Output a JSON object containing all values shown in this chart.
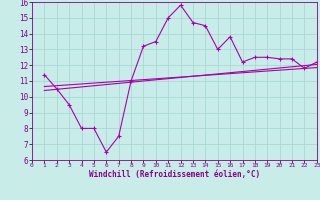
{
  "xlabel": "Windchill (Refroidissement éolien,°C)",
  "xlim": [
    0,
    23
  ],
  "ylim": [
    6,
    16
  ],
  "yticks": [
    6,
    7,
    8,
    9,
    10,
    11,
    12,
    13,
    14,
    15,
    16
  ],
  "xticks": [
    0,
    1,
    2,
    3,
    4,
    5,
    6,
    7,
    8,
    9,
    10,
    11,
    12,
    13,
    14,
    15,
    16,
    17,
    18,
    19,
    20,
    21,
    22,
    23
  ],
  "bg_color": "#c8ece8",
  "grid_color": "#a8d8d4",
  "line_color": "#aa00aa",
  "line1_x": [
    1,
    2,
    3,
    4,
    5,
    6,
    7,
    8,
    9,
    10,
    11,
    12,
    13,
    14,
    15,
    16,
    17,
    18,
    19,
    20,
    21,
    22,
    23
  ],
  "line1_y": [
    11.4,
    10.5,
    9.5,
    8.0,
    8.0,
    6.5,
    7.5,
    11.0,
    13.2,
    13.5,
    15.0,
    15.8,
    14.7,
    14.5,
    13.0,
    13.8,
    12.2,
    12.5,
    12.5,
    12.4,
    12.4,
    11.8,
    12.2
  ],
  "line2_x": [
    1,
    23
  ],
  "line2_y": [
    10.4,
    12.05
  ],
  "line3_x": [
    1,
    23
  ],
  "line3_y": [
    10.65,
    11.85
  ]
}
